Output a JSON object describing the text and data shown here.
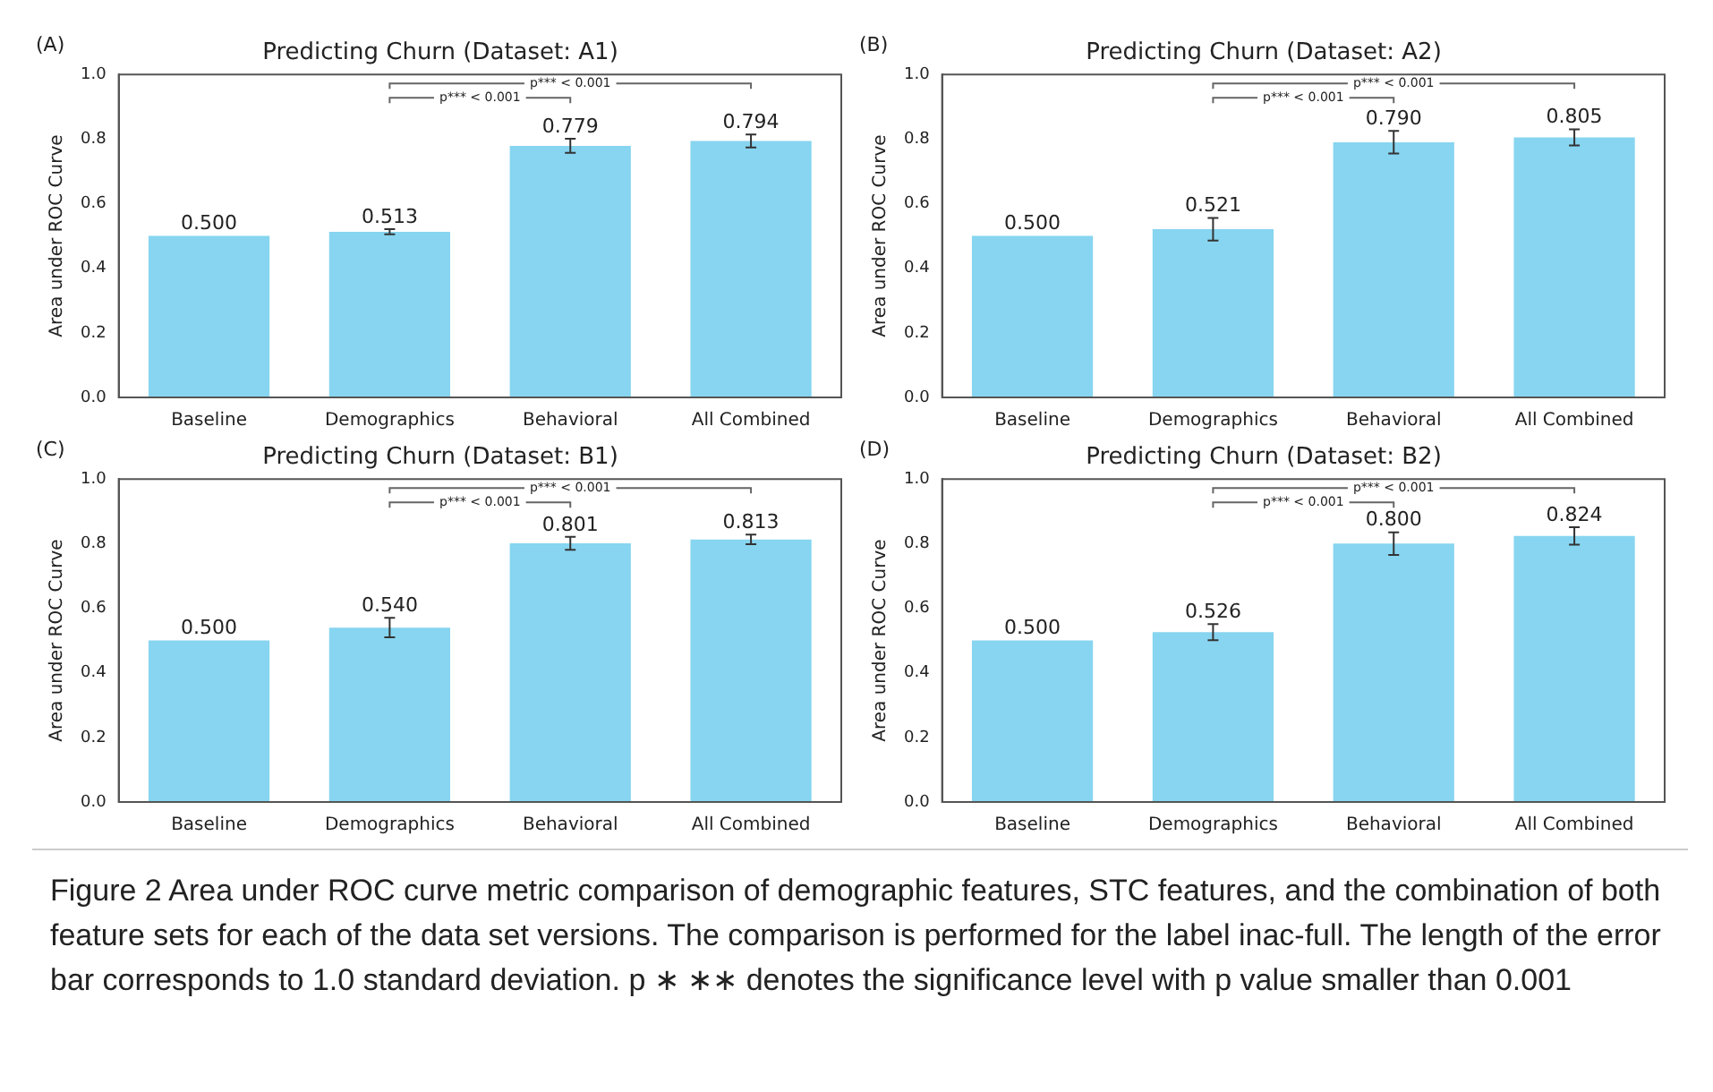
{
  "chart_data": [
    {
      "type": "bar",
      "title": "Predicting Churn (Dataset: A1)",
      "ylabel": "Area under ROC Curve",
      "categories": [
        "Baseline",
        "Demographics",
        "Behavioral",
        "All Combined"
      ],
      "values": [
        0.5,
        0.513,
        0.779,
        0.794
      ],
      "value_labels": [
        "0.500",
        "0.513",
        "0.779",
        "0.794"
      ],
      "errors": [
        null,
        0.008,
        0.022,
        0.02
      ],
      "color": "#87d5f0",
      "ylim": [
        0,
        1
      ],
      "yticks": [
        {
          "value": 0,
          "label": "0.0"
        },
        {
          "value": 0.2,
          "label": "0.2"
        },
        {
          "value": 0.4,
          "label": "0.4"
        },
        {
          "value": 0.6,
          "label": "0.6"
        },
        {
          "value": 0.8,
          "label": "0.8"
        },
        {
          "value": 1,
          "label": "1.0"
        }
      ],
      "grid": false,
      "legend": false,
      "annotations": [
        "(A)",
        "p*** < 0.001",
        "p*** < 0.001"
      ]
    },
    {
      "type": "bar",
      "title": "Predicting Churn (Dataset: A2)",
      "ylabel": "Area under ROC Curve",
      "categories": [
        "Baseline",
        "Demographics",
        "Behavioral",
        "All Combined"
      ],
      "values": [
        0.5,
        0.521,
        0.79,
        0.805
      ],
      "value_labels": [
        "0.500",
        "0.521",
        "0.790",
        "0.805"
      ],
      "errors": [
        null,
        0.035,
        0.035,
        0.025
      ],
      "color": "#87d5f0",
      "ylim": [
        0,
        1
      ],
      "yticks": [
        {
          "value": 0,
          "label": "0.0"
        },
        {
          "value": 0.2,
          "label": "0.2"
        },
        {
          "value": 0.4,
          "label": "0.4"
        },
        {
          "value": 0.6,
          "label": "0.6"
        },
        {
          "value": 0.8,
          "label": "0.8"
        },
        {
          "value": 1,
          "label": "1.0"
        }
      ],
      "grid": false,
      "legend": false,
      "annotations": [
        "(B)",
        "p*** < 0.001",
        "p*** < 0.001"
      ]
    },
    {
      "type": "bar",
      "title": "Predicting Churn (Dataset: B1)",
      "ylabel": "Area under ROC Curve",
      "categories": [
        "Baseline",
        "Demographics",
        "Behavioral",
        "All Combined"
      ],
      "values": [
        0.5,
        0.54,
        0.801,
        0.813
      ],
      "value_labels": [
        "0.500",
        "0.540",
        "0.801",
        "0.813"
      ],
      "errors": [
        null,
        0.03,
        0.02,
        0.015
      ],
      "color": "#87d5f0",
      "ylim": [
        0,
        1
      ],
      "yticks": [
        {
          "value": 0,
          "label": "0.0"
        },
        {
          "value": 0.2,
          "label": "0.2"
        },
        {
          "value": 0.4,
          "label": "0.4"
        },
        {
          "value": 0.6,
          "label": "0.6"
        },
        {
          "value": 0.8,
          "label": "0.8"
        },
        {
          "value": 1,
          "label": "1.0"
        }
      ],
      "grid": false,
      "legend": false,
      "annotations": [
        "(C)",
        "p*** < 0.001",
        "p*** < 0.001"
      ]
    },
    {
      "type": "bar",
      "title": "Predicting Churn (Dataset: B2)",
      "ylabel": "Area under ROC Curve",
      "categories": [
        "Baseline",
        "Demographics",
        "Behavioral",
        "All Combined"
      ],
      "values": [
        0.5,
        0.526,
        0.8,
        0.824
      ],
      "value_labels": [
        "0.500",
        "0.526",
        "0.800",
        "0.824"
      ],
      "errors": [
        null,
        0.025,
        0.035,
        0.027
      ],
      "color": "#87d5f0",
      "ylim": [
        0,
        1
      ],
      "yticks": [
        {
          "value": 0,
          "label": "0.0"
        },
        {
          "value": 0.2,
          "label": "0.2"
        },
        {
          "value": 0.4,
          "label": "0.4"
        },
        {
          "value": 0.6,
          "label": "0.6"
        },
        {
          "value": 0.8,
          "label": "0.8"
        },
        {
          "value": 1,
          "label": "1.0"
        }
      ],
      "grid": false,
      "legend": false,
      "annotations": [
        "(D)",
        "p*** < 0.001",
        "p*** < 0.001",
        "Figure 2  Area under ROC curve metric comparison of demographic features, STC features, and the combination of both feature sets for each of the data set versions. The comparison is performed for the label inac-full. The length of the error bar corresponds to 1.0 standard deviation. p ∗ ∗∗ denotes the significance level with p value smaller than 0.001"
      ]
    }
  ]
}
